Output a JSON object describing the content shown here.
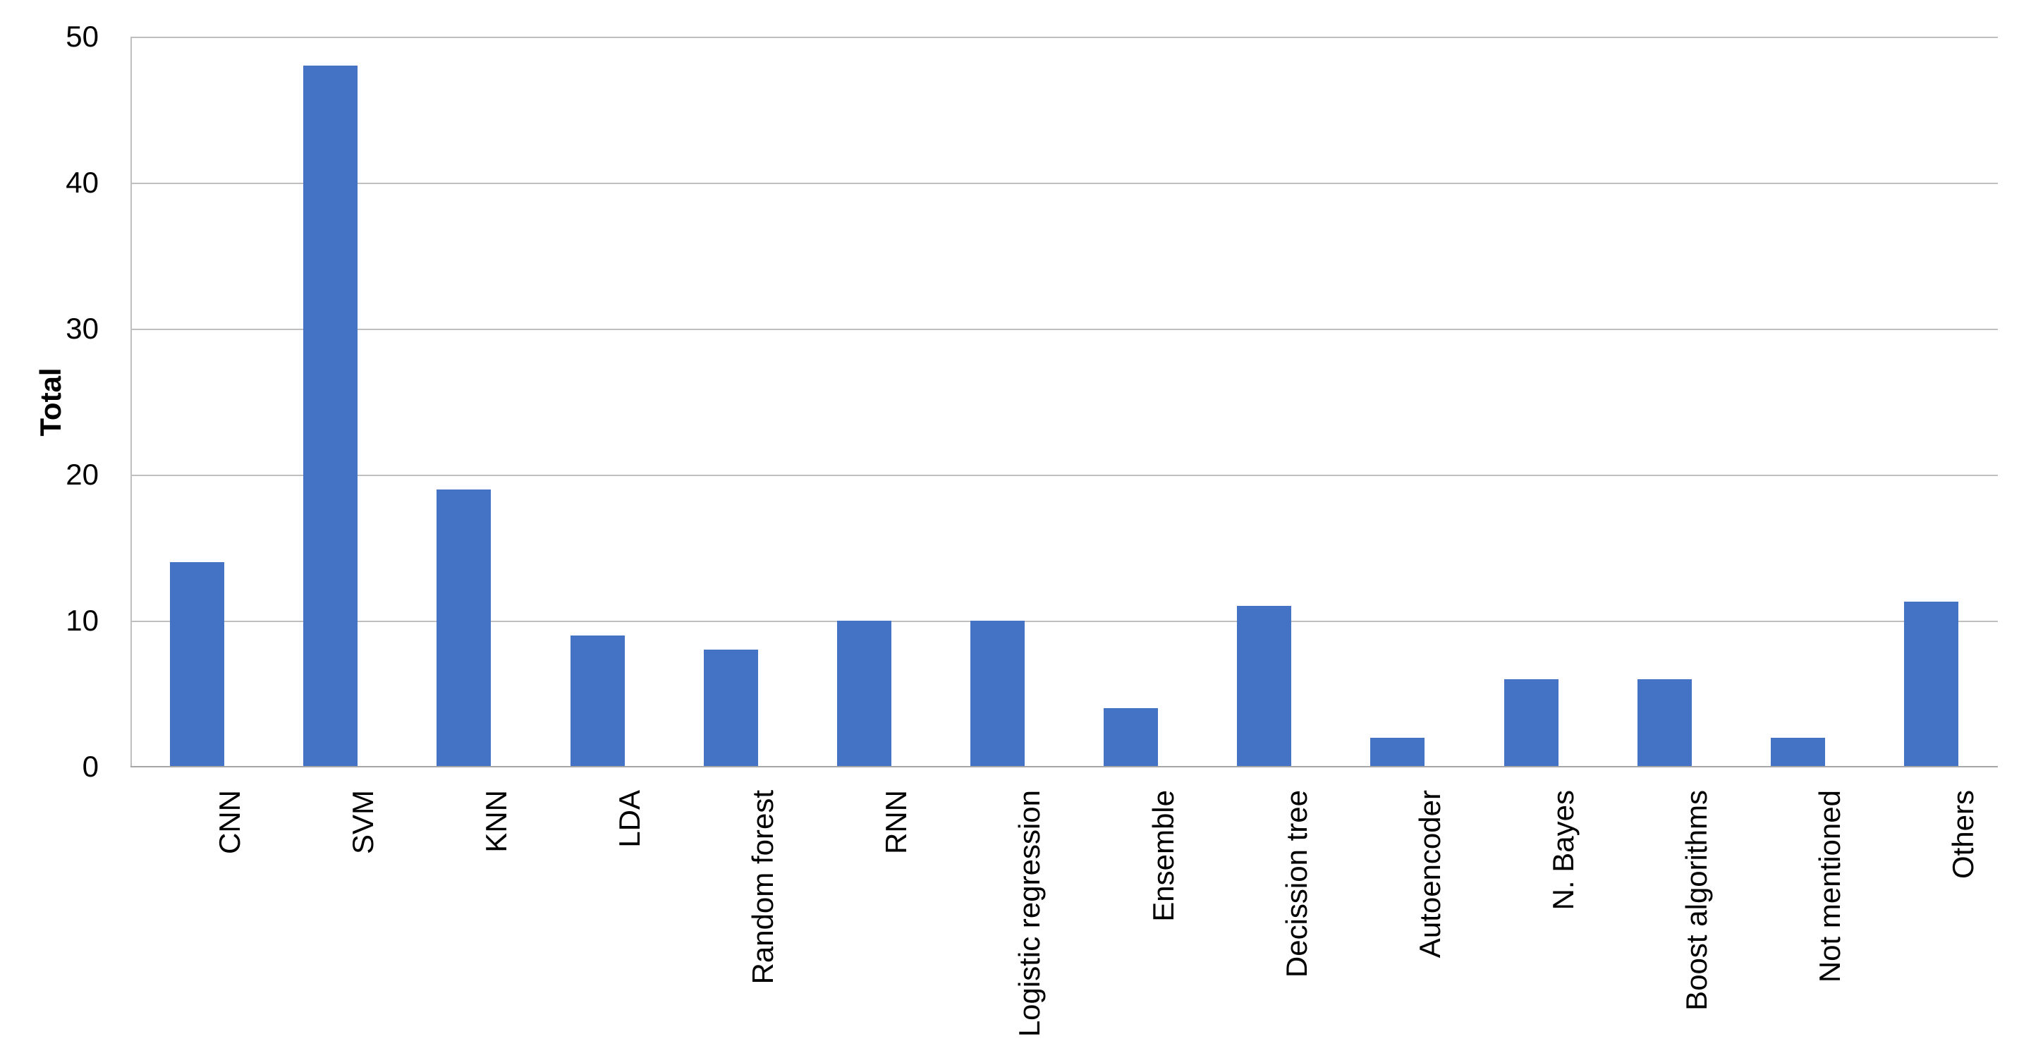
{
  "chart_data": {
    "type": "bar",
    "title": "",
    "xlabel": "",
    "ylabel": "Total",
    "categories": [
      "CNN",
      "SVM",
      "KNN",
      "LDA",
      "Random forest",
      "RNN",
      "Logistic regression",
      "Ensemble",
      "Decission tree",
      "Autoencoder",
      "N. Bayes",
      "Boost algorithms",
      "Not mentioned",
      "Others"
    ],
    "values": [
      14,
      48,
      19,
      9,
      8,
      10,
      10,
      4,
      11,
      2,
      6,
      6,
      2,
      11.3
    ],
    "ylim": [
      0,
      50
    ],
    "y_ticks": [
      0,
      10,
      20,
      30,
      40,
      50
    ],
    "grid": true,
    "legend": false,
    "colors": {
      "bar": "#4472C4",
      "gridline": "#BFBFBF",
      "y_axis_line": "#BFBFBF",
      "x_axis_line": "#A6A6A6",
      "text": "#000000"
    }
  }
}
